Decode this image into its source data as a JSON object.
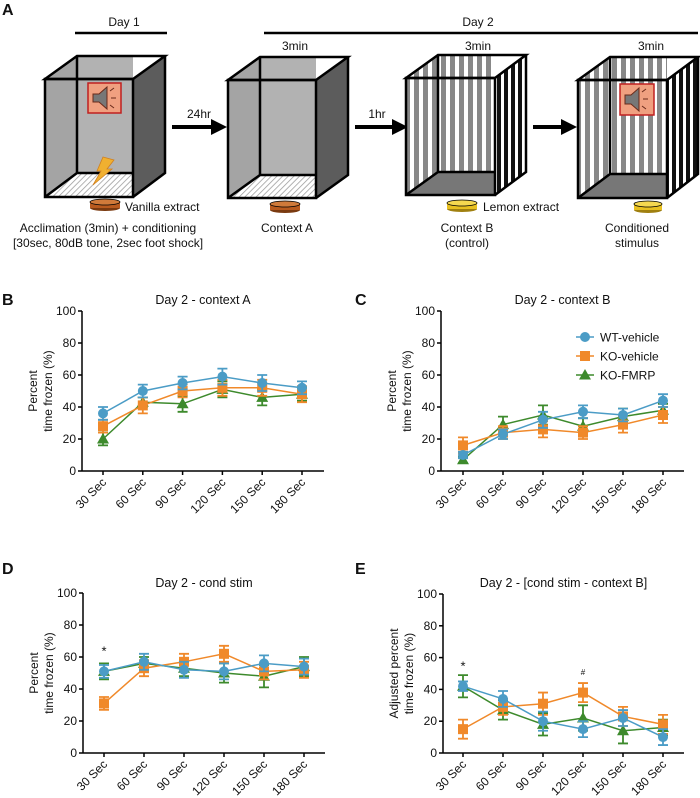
{
  "panel_labels": {
    "a": "A",
    "b": "B",
    "c": "C",
    "d": "D",
    "e": "E"
  },
  "diagram": {
    "day1": "Day 1",
    "day2": "Day 2",
    "arrow1": "24hr",
    "arrow2": "1hr",
    "duration_a": "3min",
    "duration_b": "3min",
    "duration_cs": "3min",
    "vanilla": "Vanilla extract",
    "lemon": "Lemon extract",
    "box1_line1": "Acclimation (3min) + conditioning",
    "box1_line2": "[30sec, 80dB tone, 2sec foot shock]",
    "box2_label": "Context A",
    "box3_line1": "Context B",
    "box3_line2": "(control)",
    "box4_line1": "Conditioned",
    "box4_line2": "stimulus",
    "colors": {
      "vanilla": "#b85a1e",
      "lemon": "#e8c020",
      "speaker_bg": "#f0a080",
      "speaker_border": "#c02020",
      "bolt": "#f0b030"
    }
  },
  "chart_data": [
    {
      "id": "b",
      "type": "line",
      "title": "Day 2 - context A",
      "ylabel": [
        "Percent",
        "time frozen (%)"
      ],
      "ylim": [
        0,
        100
      ],
      "yticks": [
        0,
        20,
        40,
        60,
        80,
        100
      ],
      "categories": [
        "30 Sec",
        "60 Sec",
        "90 Sec",
        "120 Sec",
        "150 Sec",
        "180 Sec"
      ],
      "series": [
        {
          "key": "wt",
          "values": [
            36,
            50,
            55,
            59,
            55,
            52
          ],
          "error": [
            4,
            4,
            4,
            5,
            5,
            4
          ]
        },
        {
          "key": "ko",
          "values": [
            28,
            41,
            50,
            52,
            52,
            48
          ],
          "error": [
            4,
            5,
            4,
            5,
            5,
            5
          ]
        },
        {
          "key": "fmrp",
          "values": [
            20,
            43,
            42,
            51,
            46,
            48
          ],
          "error": [
            4,
            3,
            5,
            5,
            5,
            4
          ]
        }
      ],
      "annotations": []
    },
    {
      "id": "c",
      "type": "line",
      "title": "Day 2 - context B",
      "ylabel": [
        "Percent",
        "time frozen (%)"
      ],
      "ylim": [
        0,
        100
      ],
      "yticks": [
        0,
        20,
        40,
        60,
        80,
        100
      ],
      "categories": [
        "30 Sec",
        "60 Sec",
        "90 Sec",
        "120 Sec",
        "150 Sec",
        "180 Sec"
      ],
      "series": [
        {
          "key": "wt",
          "values": [
            10,
            23,
            32,
            37,
            35,
            44
          ],
          "error": [
            2,
            3,
            5,
            4,
            4,
            4
          ]
        },
        {
          "key": "ko",
          "values": [
            16,
            24,
            26,
            24,
            29,
            35
          ],
          "error": [
            5,
            4,
            5,
            4,
            5,
            5
          ]
        },
        {
          "key": "fmrp",
          "values": [
            7,
            29,
            35,
            28,
            34,
            38
          ],
          "error": [
            2,
            5,
            6,
            5,
            5,
            4
          ]
        }
      ],
      "legend": {
        "placement": "top-right",
        "entries": [
          "WT-vehicle",
          "KO-vehicle",
          "KO-FMRP"
        ]
      },
      "annotations": []
    },
    {
      "id": "d",
      "type": "line",
      "title": "Day 2 - cond stim",
      "ylabel": [
        "Percent",
        "time frozen (%)"
      ],
      "ylim": [
        0,
        100
      ],
      "yticks": [
        0,
        20,
        40,
        60,
        80,
        100
      ],
      "categories": [
        "30 Sec",
        "60 Sec",
        "90 Sec",
        "120 Sec",
        "150 Sec",
        "180 Sec"
      ],
      "series": [
        {
          "key": "wt",
          "values": [
            51,
            57,
            52,
            51,
            56,
            54
          ],
          "error": [
            4,
            5,
            5,
            5,
            5,
            5
          ]
        },
        {
          "key": "ko",
          "values": [
            31,
            53,
            57,
            62,
            51,
            52
          ],
          "error": [
            4,
            5,
            5,
            5,
            5,
            5
          ]
        },
        {
          "key": "fmrp",
          "values": [
            51,
            56,
            53,
            50,
            48,
            54
          ],
          "error": [
            5,
            4,
            5,
            6,
            7,
            6
          ]
        }
      ],
      "annotations": [
        {
          "category": "30 Sec",
          "text": "*",
          "y": 61
        }
      ]
    },
    {
      "id": "e",
      "type": "line",
      "title": "Day 2 - [cond stim - context B]",
      "ylabel": [
        "Adjusted percent",
        "time frozen (%)"
      ],
      "ylim": [
        0,
        100
      ],
      "yticks": [
        0,
        20,
        40,
        60,
        80,
        100
      ],
      "categories": [
        "30 Sec",
        "60 Sec",
        "90 Sec",
        "120 Sec",
        "150 Sec",
        "180 Sec"
      ],
      "series": [
        {
          "key": "wt",
          "values": [
            42,
            34,
            20,
            15,
            22,
            10
          ],
          "error": [
            3,
            5,
            6,
            5,
            5,
            5
          ]
        },
        {
          "key": "ko",
          "values": [
            15,
            29,
            31,
            38,
            23,
            18
          ],
          "error": [
            6,
            5,
            7,
            6,
            6,
            6
          ]
        },
        {
          "key": "fmrp",
          "values": [
            42,
            27,
            18,
            22,
            14,
            16
          ],
          "error": [
            7,
            6,
            7,
            8,
            8,
            5
          ]
        }
      ],
      "annotations": [
        {
          "category": "30 Sec",
          "text": "*",
          "y": 52
        },
        {
          "category": "120 Sec",
          "text": "#",
          "y": 49
        }
      ]
    }
  ],
  "series_styles": {
    "wt": {
      "name": "WT-vehicle",
      "color": "#4b9cc6",
      "marker": "circle"
    },
    "ko": {
      "name": "KO-vehicle",
      "color": "#f0892a",
      "marker": "square"
    },
    "fmrp": {
      "name": "KO-FMRP",
      "color": "#3d8a2c",
      "marker": "triangle"
    }
  }
}
